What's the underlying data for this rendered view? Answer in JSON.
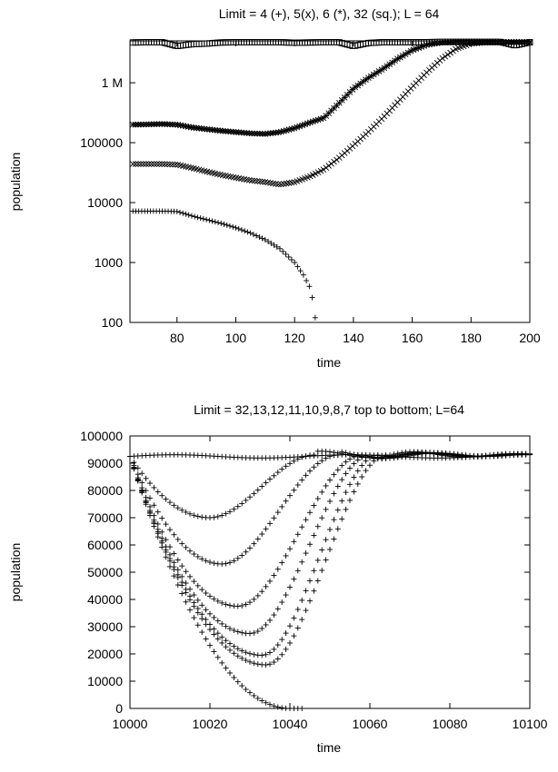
{
  "chart_data": [
    {
      "type": "scatter",
      "title": "Limit = 4 (+), 5(x), 6 (*), 32 (sq.); L = 64",
      "xlabel": "time",
      "ylabel": "population",
      "xlim": [
        64,
        200
      ],
      "ylim": [
        100,
        5000000
      ],
      "yscale": "log",
      "grid": false,
      "xticks": [
        80,
        100,
        120,
        140,
        160,
        180,
        200
      ],
      "xtick_labels": [
        "80",
        "100",
        "120",
        "140",
        "160",
        "180",
        "200"
      ],
      "yticks": [
        100,
        1000,
        10000,
        100000,
        1000000
      ],
      "ytick_labels": [
        "100",
        "1000",
        "10000",
        "100000",
        "1 M"
      ],
      "series": [
        {
          "name": "4 (+)",
          "marker": "plus",
          "x": [
            65,
            70,
            75,
            80,
            85,
            90,
            95,
            100,
            105,
            110,
            115,
            120,
            123,
            125,
            126,
            127
          ],
          "y": [
            7200,
            7200,
            7200,
            7100,
            6000,
            5200,
            4500,
            3800,
            3100,
            2400,
            1700,
            1000,
            620,
            400,
            260,
            120
          ]
        },
        {
          "name": "5 (x)",
          "marker": "cross",
          "x": [
            65,
            70,
            75,
            80,
            85,
            90,
            95,
            100,
            105,
            110,
            115,
            120,
            125,
            130,
            135,
            140,
            145,
            150,
            155,
            160,
            165,
            170,
            175,
            180,
            185,
            190,
            195,
            200
          ],
          "y": [
            44000,
            44000,
            44000,
            43000,
            38000,
            33000,
            29000,
            26000,
            23500,
            22000,
            20000,
            22000,
            27000,
            36000,
            55000,
            90000,
            150000,
            260000,
            470000,
            850000,
            1500000,
            2500000,
            3700000,
            4500000,
            4700000,
            4700000,
            4700000,
            4700000
          ]
        },
        {
          "name": "6 (*)",
          "marker": "star",
          "x": [
            65,
            70,
            75,
            80,
            85,
            90,
            95,
            100,
            105,
            110,
            115,
            120,
            125,
            130,
            135,
            140,
            145,
            150,
            155,
            160,
            165,
            170,
            175,
            180,
            185,
            190,
            195,
            200
          ],
          "y": [
            200000,
            202000,
            205000,
            200000,
            180000,
            168000,
            158000,
            150000,
            143000,
            140000,
            150000,
            175000,
            215000,
            260000,
            450000,
            800000,
            1200000,
            1700000,
            2500000,
            3500000,
            4300000,
            4700000,
            4800000,
            4800000,
            4800000,
            4800000,
            4800000,
            4800000
          ]
        },
        {
          "name": "32 (sq.)",
          "marker": "square",
          "x": [
            65,
            70,
            75,
            80,
            85,
            90,
            95,
            100,
            105,
            110,
            115,
            120,
            125,
            130,
            135,
            140,
            145,
            150,
            155,
            160,
            165,
            170,
            175,
            180,
            185,
            190,
            195,
            200
          ],
          "y": [
            4700000,
            4750000,
            4750000,
            4100000,
            4400000,
            4500000,
            4700000,
            4750000,
            4750000,
            4750000,
            4750000,
            4650000,
            4700000,
            4750000,
            4750000,
            4100000,
            4600000,
            4750000,
            4750000,
            4750000,
            4750000,
            4800000,
            4800000,
            4800000,
            4800000,
            4800000,
            4200000,
            4750000
          ]
        }
      ]
    },
    {
      "type": "scatter",
      "title": "Limit = 32,13,12,11,10,9,8,7 top to bottom; L=64",
      "xlabel": "time",
      "ylabel": "population",
      "xlim": [
        10000,
        10100
      ],
      "ylim": [
        0,
        100000
      ],
      "grid": false,
      "xticks": [
        10000,
        10020,
        10040,
        10060,
        10080,
        10100
      ],
      "xtick_labels": [
        "10000",
        "10020",
        "10040",
        "10060",
        "10080",
        "10100"
      ],
      "yticks": [
        0,
        10000,
        20000,
        30000,
        40000,
        50000,
        60000,
        70000,
        80000,
        90000,
        100000
      ],
      "ytick_labels": [
        "0",
        "10000",
        "20000",
        "30000",
        "40000",
        "50000",
        "60000",
        "70000",
        "80000",
        "90000",
        "100000"
      ],
      "marker": "plus",
      "series": [
        {
          "name": "32",
          "min_time": 10000,
          "min_value": 92500,
          "settle_time": 10000,
          "x_end": 10100
        },
        {
          "name": "13",
          "min_time": 10020,
          "min_value": 70000,
          "settle_time": 10046,
          "x_end": 10100
        },
        {
          "name": "12",
          "min_time": 10023,
          "min_value": 53000,
          "settle_time": 10052,
          "x_end": 10100
        },
        {
          "name": "11",
          "min_time": 10027,
          "min_value": 37500,
          "settle_time": 10058,
          "x_end": 10100
        },
        {
          "name": "10",
          "min_time": 10030,
          "min_value": 27500,
          "settle_time": 10060,
          "x_end": 10100
        },
        {
          "name": "9",
          "min_time": 10033,
          "min_value": 19500,
          "settle_time": 10062,
          "x_end": 10100
        },
        {
          "name": "8",
          "min_time": 10034,
          "min_value": 16000,
          "settle_time": 10064,
          "x_end": 10100
        },
        {
          "name": "7",
          "min_time": 10040,
          "min_value": 0,
          "settle_time": null,
          "x_end": 10043
        }
      ],
      "start_value": 92500,
      "plateau_value": 93000
    }
  ]
}
